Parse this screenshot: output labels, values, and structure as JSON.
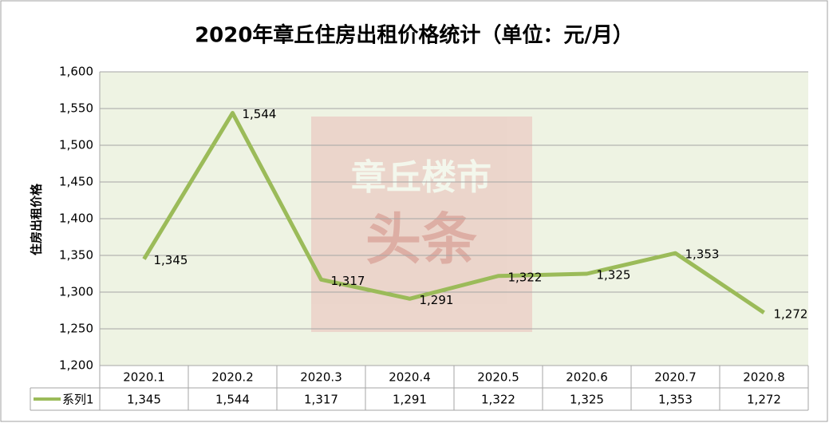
{
  "chart_data": {
    "type": "line",
    "title": "2020年章丘住房出租价格统计（单位：元/月）",
    "y_label": "住房出租价格",
    "watermark": [
      "章丘楼市",
      "头条"
    ],
    "categories": [
      "2020.1",
      "2020.2",
      "2020.3",
      "2020.4",
      "2020.5",
      "2020.6",
      "2020.7",
      "2020.8"
    ],
    "series": [
      {
        "name": "系列1",
        "color": "#9bbb59",
        "values": [
          1345,
          1544,
          1317,
          1291,
          1322,
          1325,
          1353,
          1272
        ],
        "value_labels": [
          "1,345",
          "1,544",
          "1,317",
          "1,291",
          "1,322",
          "1,325",
          "1,353",
          "1,272"
        ]
      }
    ],
    "ylim": [
      1200,
      1600
    ],
    "yticks": [
      {
        "value": 1200,
        "label": "1,200"
      },
      {
        "value": 1250,
        "label": "1,250"
      },
      {
        "value": 1300,
        "label": "1,300"
      },
      {
        "value": 1350,
        "label": "1,350"
      },
      {
        "value": 1400,
        "label": "1,400"
      },
      {
        "value": 1450,
        "label": "1,450"
      },
      {
        "value": 1500,
        "label": "1,500"
      },
      {
        "value": 1550,
        "label": "1,550"
      },
      {
        "value": 1600,
        "label": "1,600"
      }
    ],
    "grid": true
  }
}
